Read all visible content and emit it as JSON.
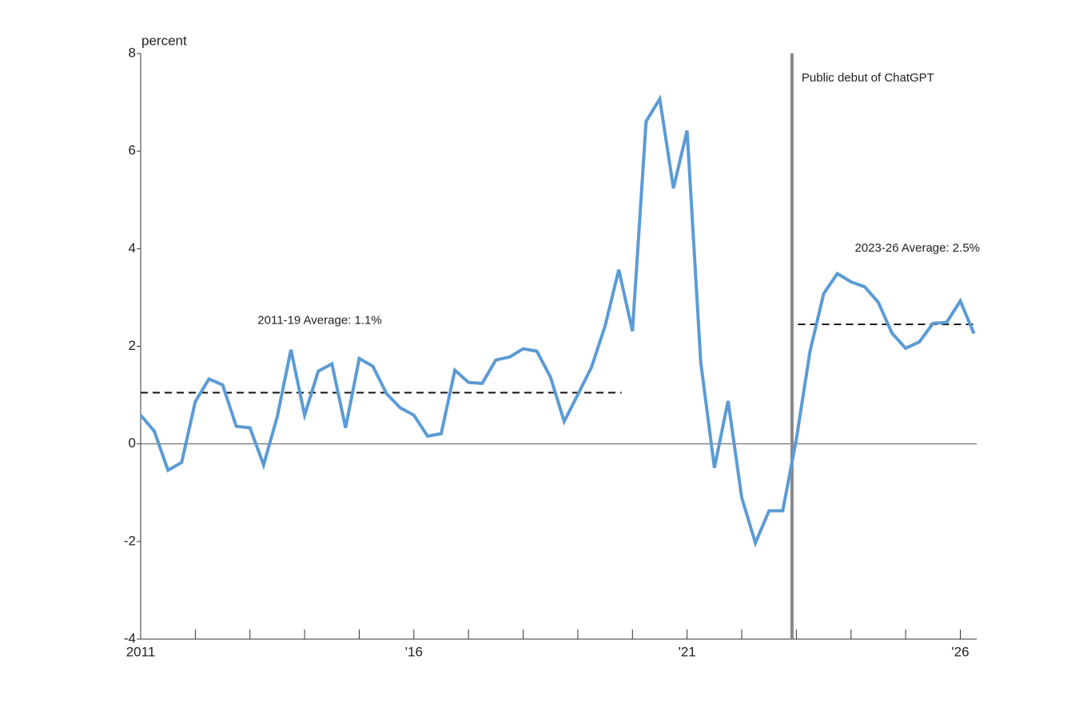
{
  "chart_data": {
    "type": "line",
    "y_label": "percent",
    "x": [
      2011,
      2011.25,
      2011.5,
      2011.75,
      2012,
      2012.25,
      2012.5,
      2012.75,
      2013,
      2013.25,
      2013.5,
      2013.75,
      2014,
      2014.25,
      2014.5,
      2014.75,
      2015,
      2015.25,
      2015.5,
      2015.75,
      2016,
      2016.25,
      2016.5,
      2016.75,
      2017,
      2017.25,
      2017.5,
      2017.75,
      2018,
      2018.25,
      2018.5,
      2018.75,
      2019,
      2019.25,
      2019.5,
      2019.75,
      2020,
      2020.25,
      2020.5,
      2020.75,
      2021,
      2021.25,
      2021.5,
      2021.75,
      2022,
      2022.25,
      2022.5,
      2022.75,
      2023,
      2023.25,
      2023.5,
      2023.75,
      2024,
      2024.25,
      2024.5,
      2024.75,
      2025,
      2025.25,
      2025.5,
      2025.75,
      2026,
      2026.25
    ],
    "series": [
      {
        "color": "#5b9bd5",
        "values": [
          0.59,
          0.26,
          -0.54,
          -0.38,
          0.87,
          1.33,
          1.21,
          0.36,
          0.33,
          -0.43,
          0.56,
          1.93,
          0.59,
          1.49,
          1.64,
          0.33,
          1.75,
          1.59,
          1.03,
          0.74,
          0.59,
          0.16,
          0.21,
          1.51,
          1.26,
          1.24,
          1.72,
          1.78,
          1.95,
          1.9,
          1.37,
          0.46,
          1.01,
          1.57,
          2.42,
          3.57,
          2.31,
          6.61,
          7.07,
          5.24,
          6.42,
          1.67,
          -0.49,
          0.88,
          -1.1,
          -2.03,
          -1.37,
          -1.37,
          0.1,
          1.9,
          3.08,
          3.49,
          3.32,
          3.22,
          2.9,
          2.27,
          1.96,
          2.09,
          2.47,
          2.49,
          2.93,
          2.26
        ]
      }
    ],
    "xlim": [
      2011,
      2026.3
    ],
    "xticks": [
      {
        "value": 2011,
        "label": "2011"
      },
      {
        "value": 2016,
        "label": "'16"
      },
      {
        "value": 2021,
        "label": "'21"
      },
      {
        "value": 2026,
        "label": "'26"
      }
    ],
    "xminorticks": [
      2012,
      2013,
      2014,
      2015,
      2017,
      2018,
      2019,
      2020,
      2022,
      2023,
      2024,
      2025
    ],
    "ylim": [
      -4,
      8
    ],
    "yticks": [
      -4,
      -2,
      0,
      2,
      4,
      6,
      8
    ],
    "event_line": {
      "x": 2022.92,
      "label": "Public debut of ChatGPT",
      "color": "#888888"
    },
    "average_lines": [
      {
        "label": "2011-19 Average: 1.1%",
        "value": 1.05,
        "xrange": [
          2011,
          2019.8
        ]
      },
      {
        "label": "2023-26 Average: 2.5%",
        "value": 2.45,
        "xrange": [
          2023.03,
          2026.3
        ]
      }
    ]
  }
}
